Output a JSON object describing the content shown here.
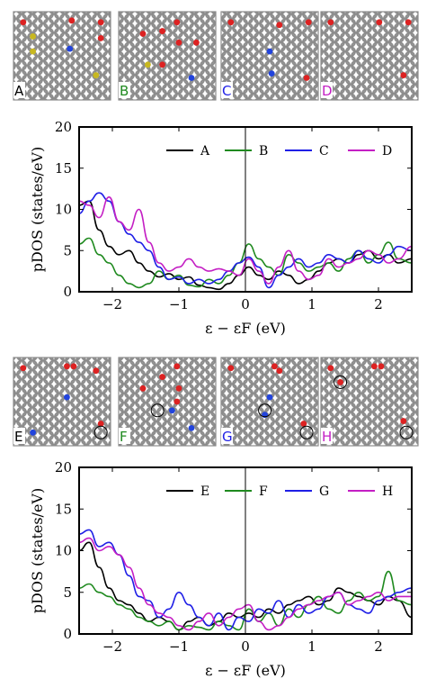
{
  "colors": {
    "A": "#000000",
    "B": "#1f8a1f",
    "C": "#1f1fe6",
    "D": "#c41fc4",
    "E": "#000000",
    "F": "#1f8a1f",
    "G": "#1f1fe6",
    "H": "#c41fc4",
    "atom": "#888888",
    "oxygen": "#dd2222",
    "nitrogen": "#2244dd",
    "sulfur": "#c8b820"
  },
  "structures_top": [
    {
      "label": "A",
      "color": "#000000",
      "red": [
        [
          0.1,
          0.12
        ],
        [
          0.9,
          0.12
        ],
        [
          0.6,
          0.1
        ],
        [
          0.9,
          0.3
        ]
      ],
      "blue": [
        [
          0.58,
          0.42
        ]
      ],
      "yellow": [
        [
          0.2,
          0.28
        ],
        [
          0.2,
          0.45
        ],
        [
          0.85,
          0.72
        ]
      ],
      "circled": []
    },
    {
      "label": "B",
      "color": "#1f8a1f",
      "red": [
        [
          0.25,
          0.25
        ],
        [
          0.45,
          0.22
        ],
        [
          0.6,
          0.12
        ],
        [
          0.62,
          0.35
        ],
        [
          0.45,
          0.6
        ],
        [
          0.8,
          0.35
        ]
      ],
      "blue": [
        [
          0.75,
          0.75
        ]
      ],
      "yellow": [
        [
          0.3,
          0.6
        ]
      ],
      "circled": []
    },
    {
      "label": "C",
      "color": "#1f1fe6",
      "red": [
        [
          0.1,
          0.12
        ],
        [
          0.9,
          0.12
        ],
        [
          0.6,
          0.15
        ],
        [
          0.88,
          0.75
        ]
      ],
      "blue": [
        [
          0.5,
          0.45
        ],
        [
          0.52,
          0.7
        ]
      ],
      "yellow": [],
      "circled": []
    },
    {
      "label": "D",
      "color": "#c41fc4",
      "red": [
        [
          0.1,
          0.12
        ],
        [
          0.9,
          0.12
        ],
        [
          0.6,
          0.12
        ],
        [
          0.85,
          0.72
        ]
      ],
      "blue": [],
      "yellow": [],
      "circled": []
    }
  ],
  "structures_bottom": [
    {
      "label": "E",
      "color": "#000000",
      "red": [
        [
          0.1,
          0.12
        ],
        [
          0.55,
          0.1
        ],
        [
          0.62,
          0.1
        ],
        [
          0.85,
          0.15
        ],
        [
          0.9,
          0.75
        ]
      ],
      "blue": [
        [
          0.55,
          0.45
        ],
        [
          0.2,
          0.85
        ]
      ],
      "yellow": [],
      "circled": [
        [
          0.9,
          0.85
        ]
      ]
    },
    {
      "label": "F",
      "color": "#1f8a1f",
      "red": [
        [
          0.25,
          0.35
        ],
        [
          0.45,
          0.22
        ],
        [
          0.6,
          0.1
        ],
        [
          0.6,
          0.5
        ],
        [
          0.62,
          0.35
        ]
      ],
      "blue": [
        [
          0.55,
          0.6
        ],
        [
          0.75,
          0.8
        ]
      ],
      "yellow": [],
      "circled": [
        [
          0.4,
          0.6
        ]
      ]
    },
    {
      "label": "G",
      "color": "#1f1fe6",
      "red": [
        [
          0.1,
          0.12
        ],
        [
          0.55,
          0.1
        ],
        [
          0.6,
          0.15
        ],
        [
          0.85,
          0.75
        ]
      ],
      "blue": [
        [
          0.5,
          0.45
        ],
        [
          0.45,
          0.65
        ]
      ],
      "yellow": [],
      "circled": [
        [
          0.45,
          0.6
        ],
        [
          0.88,
          0.85
        ]
      ]
    },
    {
      "label": "H",
      "color": "#c41fc4",
      "red": [
        [
          0.1,
          0.12
        ],
        [
          0.55,
          0.1
        ],
        [
          0.62,
          0.1
        ],
        [
          0.85,
          0.72
        ],
        [
          0.2,
          0.28
        ]
      ],
      "blue": [],
      "yellow": [],
      "circled": [
        [
          0.2,
          0.28
        ],
        [
          0.88,
          0.85
        ]
      ]
    }
  ],
  "chart_data": [
    {
      "type": "line",
      "xlabel": "ε − εF (eV)",
      "ylabel": "pDOS (states/eV)",
      "xlim": [
        -2.5,
        2.5
      ],
      "ylim": [
        0,
        20
      ],
      "xticks": [
        -2,
        -1,
        0,
        1,
        2
      ],
      "yticks": [
        0,
        5,
        10,
        15,
        20
      ],
      "xtick_labels": [
        "−2",
        "−1",
        "0",
        "1",
        "2"
      ],
      "ytick_labels": [
        "0",
        "5",
        "10",
        "15",
        "20"
      ],
      "vline": 0,
      "legend_position": "top-right",
      "series": [
        {
          "name": "A",
          "color": "#000000",
          "x": [
            -2.5,
            -2.35,
            -2.2,
            -2.05,
            -1.9,
            -1.75,
            -1.6,
            -1.45,
            -1.3,
            -1.15,
            -1.0,
            -0.85,
            -0.7,
            -0.55,
            -0.4,
            -0.25,
            -0.1,
            0.05,
            0.2,
            0.35,
            0.5,
            0.65,
            0.8,
            0.95,
            1.1,
            1.25,
            1.4,
            1.55,
            1.7,
            1.85,
            2.0,
            2.15,
            2.3,
            2.5
          ],
          "y": [
            10.5,
            11.0,
            7.5,
            5.5,
            4.5,
            5.0,
            3.5,
            2.5,
            1.8,
            2.2,
            1.5,
            1.8,
            0.8,
            0.5,
            0.3,
            1.0,
            2.0,
            3.0,
            2.0,
            1.5,
            2.5,
            2.0,
            1.0,
            1.5,
            2.5,
            3.5,
            4.0,
            3.5,
            4.5,
            5.0,
            4.0,
            4.5,
            3.5,
            4.0
          ]
        },
        {
          "name": "B",
          "color": "#1f8a1f",
          "x": [
            -2.5,
            -2.35,
            -2.2,
            -2.05,
            -1.9,
            -1.75,
            -1.6,
            -1.45,
            -1.3,
            -1.15,
            -1.0,
            -0.85,
            -0.7,
            -0.55,
            -0.4,
            -0.25,
            -0.1,
            0.05,
            0.2,
            0.35,
            0.5,
            0.65,
            0.8,
            0.95,
            1.1,
            1.25,
            1.4,
            1.55,
            1.7,
            1.85,
            2.0,
            2.15,
            2.3,
            2.5
          ],
          "y": [
            5.8,
            6.5,
            4.5,
            3.5,
            2.0,
            1.0,
            0.5,
            1.0,
            2.5,
            1.5,
            2.0,
            0.8,
            0.6,
            1.5,
            1.0,
            2.0,
            3.5,
            5.8,
            4.0,
            3.0,
            2.0,
            4.5,
            3.5,
            2.5,
            3.0,
            3.5,
            2.5,
            4.0,
            5.0,
            3.5,
            4.5,
            6.0,
            4.0,
            3.5
          ]
        },
        {
          "name": "C",
          "color": "#1f1fe6",
          "x": [
            -2.5,
            -2.35,
            -2.2,
            -2.05,
            -1.9,
            -1.75,
            -1.6,
            -1.45,
            -1.3,
            -1.15,
            -1.0,
            -0.85,
            -0.7,
            -0.55,
            -0.4,
            -0.25,
            -0.1,
            0.05,
            0.2,
            0.35,
            0.5,
            0.65,
            0.8,
            0.95,
            1.1,
            1.25,
            1.4,
            1.55,
            1.7,
            1.85,
            2.0,
            2.15,
            2.3,
            2.5
          ],
          "y": [
            9.5,
            11.0,
            12.0,
            11.0,
            8.5,
            7.0,
            6.0,
            5.0,
            3.0,
            1.5,
            1.8,
            1.0,
            1.5,
            1.0,
            1.5,
            2.5,
            3.5,
            4.2,
            3.0,
            0.5,
            2.0,
            3.0,
            4.0,
            3.0,
            3.5,
            4.5,
            4.0,
            3.5,
            5.0,
            4.0,
            3.5,
            4.5,
            5.5,
            5.0
          ]
        },
        {
          "name": "D",
          "color": "#c41fc4",
          "x": [
            -2.5,
            -2.35,
            -2.2,
            -2.05,
            -1.9,
            -1.75,
            -1.6,
            -1.45,
            -1.3,
            -1.15,
            -1.0,
            -0.85,
            -0.7,
            -0.55,
            -0.4,
            -0.25,
            -0.1,
            0.05,
            0.2,
            0.35,
            0.5,
            0.65,
            0.8,
            0.95,
            1.1,
            1.25,
            1.4,
            1.55,
            1.7,
            1.85,
            2.0,
            2.15,
            2.3,
            2.5
          ],
          "y": [
            11.0,
            10.5,
            9.0,
            11.5,
            8.5,
            7.5,
            10.0,
            6.0,
            3.5,
            2.5,
            3.0,
            4.0,
            3.0,
            2.5,
            2.8,
            2.5,
            2.0,
            4.0,
            2.5,
            1.0,
            3.0,
            5.0,
            2.5,
            1.5,
            2.0,
            4.0,
            3.0,
            3.5,
            4.0,
            5.0,
            4.5,
            3.5,
            4.0,
            5.5
          ]
        }
      ]
    },
    {
      "type": "line",
      "xlabel": "ε − εF (eV)",
      "ylabel": "pDOS (states/eV)",
      "xlim": [
        -2.5,
        2.5
      ],
      "ylim": [
        0,
        20
      ],
      "xticks": [
        -2,
        -1,
        0,
        1,
        2
      ],
      "yticks": [
        0,
        5,
        10,
        15,
        20
      ],
      "xtick_labels": [
        "−2",
        "−1",
        "0",
        "1",
        "2"
      ],
      "ytick_labels": [
        "0",
        "5",
        "10",
        "15",
        "20"
      ],
      "vline": 0,
      "legend_position": "top-right",
      "series": [
        {
          "name": "E",
          "color": "#000000",
          "x": [
            -2.5,
            -2.35,
            -2.2,
            -2.05,
            -1.9,
            -1.75,
            -1.6,
            -1.45,
            -1.3,
            -1.15,
            -1.0,
            -0.85,
            -0.7,
            -0.55,
            -0.4,
            -0.25,
            -0.1,
            0.05,
            0.2,
            0.35,
            0.5,
            0.65,
            0.8,
            0.95,
            1.1,
            1.25,
            1.4,
            1.55,
            1.7,
            1.85,
            2.0,
            2.15,
            2.3,
            2.5
          ],
          "y": [
            10.0,
            11.0,
            8.0,
            5.5,
            4.0,
            3.5,
            2.5,
            1.5,
            2.0,
            1.5,
            0.5,
            1.5,
            2.0,
            1.0,
            1.5,
            2.5,
            2.0,
            2.5,
            2.0,
            3.0,
            2.5,
            3.5,
            4.0,
            4.5,
            3.5,
            4.0,
            5.5,
            5.0,
            4.5,
            4.0,
            3.5,
            4.5,
            4.0,
            2.0
          ]
        },
        {
          "name": "F",
          "color": "#1f8a1f",
          "x": [
            -2.5,
            -2.35,
            -2.2,
            -2.05,
            -1.9,
            -1.75,
            -1.6,
            -1.45,
            -1.3,
            -1.15,
            -1.0,
            -0.85,
            -0.7,
            -0.55,
            -0.4,
            -0.25,
            -0.1,
            0.05,
            0.2,
            0.35,
            0.5,
            0.65,
            0.8,
            0.95,
            1.1,
            1.25,
            1.4,
            1.55,
            1.7,
            1.85,
            2.0,
            2.15,
            2.3,
            2.5
          ],
          "y": [
            5.5,
            6.0,
            5.0,
            4.5,
            3.5,
            3.0,
            2.0,
            1.5,
            1.0,
            1.5,
            0.5,
            1.0,
            0.8,
            0.5,
            1.5,
            1.0,
            0.5,
            3.0,
            1.5,
            2.5,
            1.0,
            3.0,
            2.0,
            3.5,
            4.5,
            3.0,
            2.5,
            4.0,
            5.0,
            4.0,
            4.5,
            7.5,
            4.0,
            3.5
          ]
        },
        {
          "name": "G",
          "color": "#1f1fe6",
          "x": [
            -2.5,
            -2.35,
            -2.2,
            -2.05,
            -1.9,
            -1.75,
            -1.6,
            -1.45,
            -1.3,
            -1.15,
            -1.0,
            -0.85,
            -0.7,
            -0.55,
            -0.4,
            -0.25,
            -0.1,
            0.05,
            0.2,
            0.35,
            0.5,
            0.65,
            0.8,
            0.95,
            1.1,
            1.25,
            1.4,
            1.55,
            1.7,
            1.85,
            2.0,
            2.15,
            2.3,
            2.5
          ],
          "y": [
            12.0,
            12.5,
            10.5,
            11.0,
            9.5,
            7.0,
            4.5,
            4.0,
            2.0,
            3.0,
            5.0,
            3.5,
            2.0,
            1.0,
            2.5,
            0.5,
            2.0,
            1.5,
            3.0,
            2.5,
            4.0,
            2.0,
            3.5,
            2.5,
            3.0,
            4.5,
            5.0,
            3.5,
            3.0,
            2.5,
            4.0,
            4.5,
            5.0,
            5.5
          ]
        },
        {
          "name": "H",
          "color": "#c41fc4",
          "x": [
            -2.5,
            -2.35,
            -2.2,
            -2.05,
            -1.9,
            -1.75,
            -1.6,
            -1.45,
            -1.3,
            -1.15,
            -1.0,
            -0.85,
            -0.7,
            -0.55,
            -0.4,
            -0.25,
            -0.1,
            0.05,
            0.2,
            0.35,
            0.5,
            0.65,
            0.8,
            0.95,
            1.1,
            1.25,
            1.4,
            1.55,
            1.7,
            1.85,
            2.0,
            2.15,
            2.3,
            2.5
          ],
          "y": [
            11.0,
            11.5,
            10.0,
            10.5,
            9.5,
            8.0,
            5.5,
            3.5,
            2.5,
            2.0,
            1.0,
            0.5,
            1.5,
            2.5,
            1.0,
            2.0,
            3.0,
            3.5,
            1.5,
            0.5,
            1.0,
            2.0,
            3.0,
            3.5,
            4.0,
            4.5,
            5.0,
            3.5,
            4.0,
            4.5,
            5.0,
            4.0,
            4.5,
            4.5
          ]
        }
      ]
    }
  ]
}
